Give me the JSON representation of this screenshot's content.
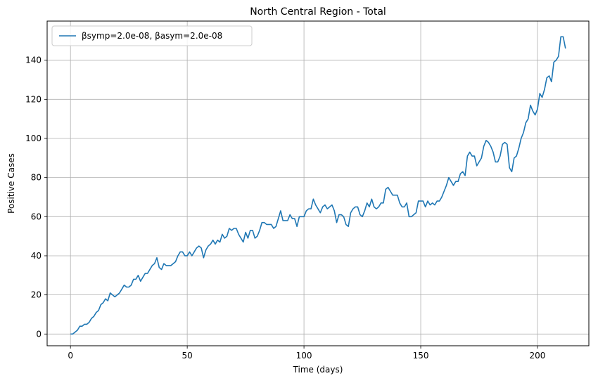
{
  "chart_data": {
    "type": "line",
    "title": "North Central Region - Total",
    "xlabel": "Time (days)",
    "ylabel": "Positive Cases",
    "xlim": [
      -10,
      222
    ],
    "ylim": [
      -6,
      160
    ],
    "xticks": [
      0,
      50,
      100,
      150,
      200
    ],
    "yticks": [
      0,
      20,
      40,
      60,
      80,
      100,
      120,
      140
    ],
    "grid": true,
    "legend_position": "top-left",
    "series": [
      {
        "name": "βsymp=2.0e-08, βasym=2.0e-08",
        "color": "#1f77b4",
        "x": [
          0,
          1,
          2,
          3,
          4,
          5,
          6,
          7,
          8,
          9,
          10,
          11,
          12,
          13,
          14,
          15,
          16,
          17,
          18,
          19,
          20,
          21,
          22,
          23,
          24,
          25,
          26,
          27,
          28,
          29,
          30,
          31,
          32,
          33,
          34,
          35,
          36,
          37,
          38,
          39,
          40,
          41,
          42,
          43,
          44,
          45,
          46,
          47,
          48,
          49,
          50,
          51,
          52,
          53,
          54,
          55,
          56,
          57,
          58,
          59,
          60,
          61,
          62,
          63,
          64,
          65,
          66,
          67,
          68,
          69,
          70,
          71,
          72,
          73,
          74,
          75,
          76,
          77,
          78,
          79,
          80,
          81,
          82,
          83,
          84,
          85,
          86,
          87,
          88,
          89,
          90,
          91,
          92,
          93,
          94,
          95,
          96,
          97,
          98,
          99,
          100,
          101,
          102,
          103,
          104,
          105,
          106,
          107,
          108,
          109,
          110,
          111,
          112,
          113,
          114,
          115,
          116,
          117,
          118,
          119,
          120,
          121,
          122,
          123,
          124,
          125,
          126,
          127,
          128,
          129,
          130,
          131,
          132,
          133,
          134,
          135,
          136,
          137,
          138,
          139,
          140,
          141,
          142,
          143,
          144,
          145,
          146,
          147,
          148,
          149,
          150,
          151,
          152,
          153,
          154,
          155,
          156,
          157,
          158,
          159,
          160,
          161,
          162,
          163,
          164,
          165,
          166,
          167,
          168,
          169,
          170,
          171,
          172,
          173,
          174,
          175,
          176,
          177,
          178,
          179,
          180,
          181,
          182,
          183,
          184,
          185,
          186,
          187,
          188,
          189,
          190,
          191,
          192,
          193,
          194,
          195,
          196,
          197,
          198,
          199,
          200,
          201,
          202,
          203,
          204,
          205,
          206,
          207,
          208,
          209,
          210,
          211,
          212
        ],
        "y": [
          0,
          0,
          1,
          2,
          4,
          4,
          5,
          5,
          6,
          8,
          9,
          11,
          12,
          15,
          16,
          18,
          17,
          21,
          20,
          19,
          20,
          21,
          23,
          25,
          24,
          24,
          25,
          28,
          28,
          30,
          27,
          29,
          31,
          31,
          33,
          35,
          36,
          39,
          34,
          33,
          36,
          35,
          35,
          35,
          36,
          37,
          40,
          42,
          42,
          40,
          40,
          42,
          40,
          42,
          44,
          45,
          44,
          39,
          43,
          45,
          46,
          48,
          46,
          48,
          47,
          51,
          49,
          50,
          54,
          53,
          54,
          54,
          51,
          49,
          47,
          52,
          49,
          53,
          53,
          49,
          50,
          53,
          57,
          57,
          56,
          56,
          56,
          54,
          55,
          59,
          63,
          58,
          58,
          58,
          61,
          59,
          59,
          55,
          60,
          60,
          60,
          63,
          64,
          64,
          69,
          66,
          64,
          62,
          65,
          66,
          64,
          65,
          66,
          63,
          57,
          61,
          61,
          60,
          56,
          55,
          62,
          64,
          65,
          65,
          61,
          60,
          63,
          67,
          65,
          69,
          65,
          64,
          65,
          67,
          67,
          74,
          75,
          73,
          71,
          71,
          71,
          67,
          65,
          65,
          67,
          60,
          60,
          61,
          62,
          68,
          68,
          68,
          65,
          68,
          66,
          67,
          66,
          68,
          68,
          70,
          73,
          76,
          80,
          78,
          76,
          78,
          78,
          82,
          83,
          81,
          91,
          93,
          91,
          91,
          86,
          88,
          90,
          96,
          99,
          98,
          96,
          93,
          88,
          88,
          91,
          97,
          98,
          97,
          85,
          83,
          90,
          91,
          95,
          100,
          103,
          108,
          110,
          117,
          114,
          112,
          115,
          123,
          121,
          125,
          131,
          132,
          129,
          139,
          140,
          142,
          152,
          152,
          146
        ]
      }
    ]
  }
}
